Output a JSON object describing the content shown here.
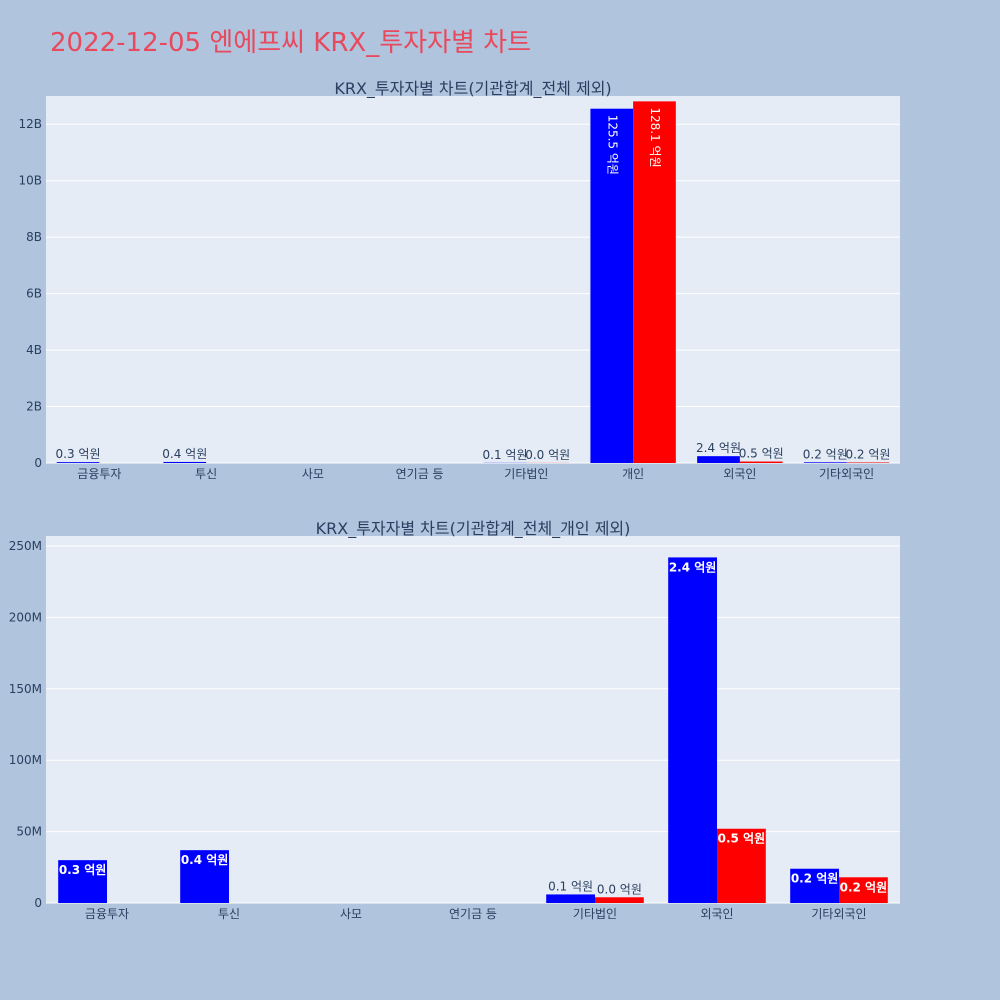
{
  "page": {
    "title": "2022-12-05 엔에프씨 KRX_투자자별 차트"
  },
  "colors": {
    "buy": "#0000ff",
    "sell": "#ff0000",
    "plot_bg": "#e5ecf6",
    "page_bg": "#b0c4de",
    "title": "#e8495c"
  },
  "chart_data": [
    {
      "type": "bar",
      "title": "KRX_투자자별 차트(기관합계_전체 제외)",
      "categories": [
        "금융투자",
        "투신",
        "사모",
        "연기금 등",
        "기타법인",
        "개인",
        "외국인",
        "기타외국인"
      ],
      "series": [
        {
          "values": [
            30000000,
            37000000,
            0,
            0,
            6000000,
            12550000000,
            242000000,
            24000000
          ]
        },
        {
          "values": [
            0,
            0,
            0,
            0,
            4000000,
            12810000000,
            52000000,
            18000000
          ]
        }
      ],
      "labels": [
        [
          "0.3 억원",
          "0.4 억원",
          "",
          "",
          "0.1 억원",
          "125.5 억원",
          "2.4 억원",
          "0.2 억원"
        ],
        [
          "",
          "",
          "",
          "",
          "0.0 억원",
          "128.1 억원",
          "0.5 억원",
          "0.2 억원"
        ]
      ],
      "ylim": [
        0,
        13000000000
      ],
      "yticks": [
        0,
        2000000000,
        4000000000,
        6000000000,
        8000000000,
        10000000000,
        12000000000
      ],
      "ytick_labels": [
        "0",
        "2B",
        "4B",
        "6B",
        "8B",
        "10B",
        "12B"
      ],
      "grid": true,
      "xlabel": "",
      "ylabel": ""
    },
    {
      "type": "bar",
      "title": "KRX_투자자별 차트(기관합계_전체_개인 제외)",
      "categories": [
        "금융투자",
        "투신",
        "사모",
        "연기금 등",
        "기타법인",
        "외국인",
        "기타외국인"
      ],
      "series": [
        {
          "values": [
            30000000,
            37000000,
            0,
            0,
            6000000,
            242000000,
            24000000
          ]
        },
        {
          "values": [
            0,
            0,
            0,
            0,
            4000000,
            52000000,
            18000000
          ]
        }
      ],
      "labels": [
        [
          "0.3 억원",
          "0.4 억원",
          "",
          "",
          "0.1 억원",
          "2.4 억원",
          "0.2 억원"
        ],
        [
          "",
          "",
          "",
          "",
          "0.0 억원",
          "0.5 억원",
          "0.2 억원"
        ]
      ],
      "ylim": [
        0,
        257000000
      ],
      "yticks": [
        0,
        50000000,
        100000000,
        150000000,
        200000000,
        250000000
      ],
      "ytick_labels": [
        "0",
        "50M",
        "100M",
        "150M",
        "200M",
        "250M"
      ],
      "grid": true,
      "xlabel": "",
      "ylabel": ""
    }
  ]
}
